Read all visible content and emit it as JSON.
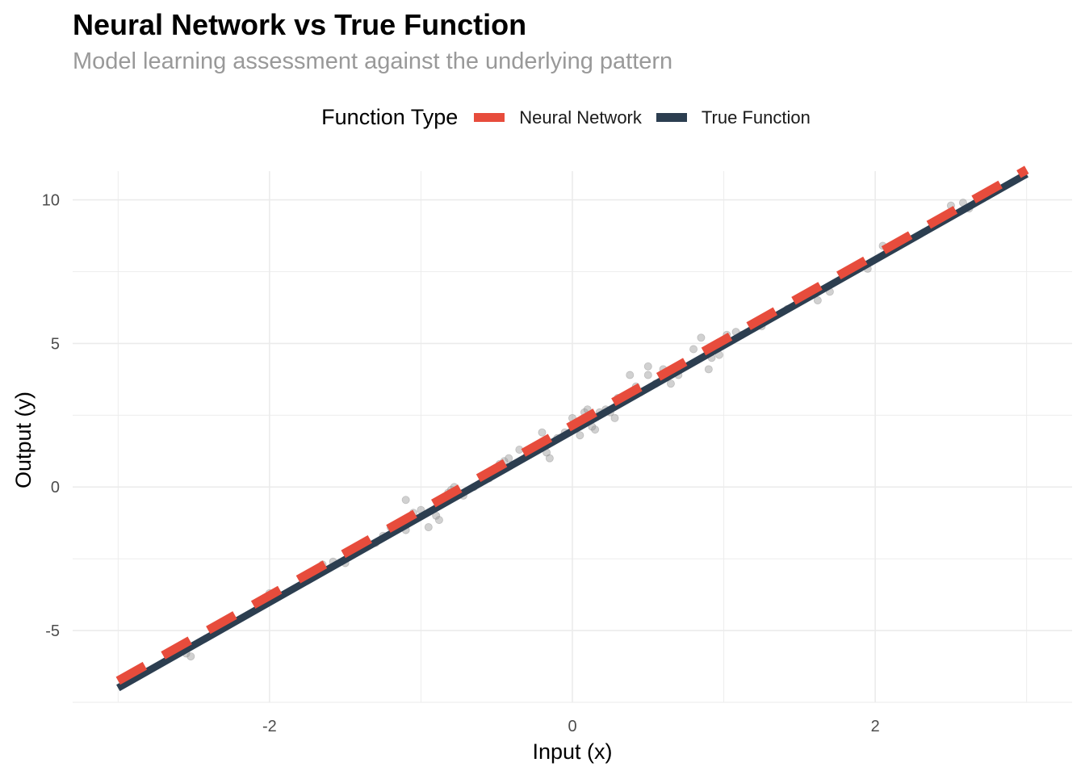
{
  "chart_data": {
    "type": "line",
    "title": "Neural Network vs True Function",
    "subtitle": "Model learning assessment against the underlying pattern",
    "xlabel": "Input (x)",
    "ylabel": "Output (y)",
    "xlim": [
      -3.3,
      3.3
    ],
    "ylim": [
      -7.5,
      11.0
    ],
    "x_ticks": [
      -2,
      0,
      2
    ],
    "x_tick_labels": [
      "-2",
      "0",
      "2"
    ],
    "y_ticks": [
      -5,
      0,
      5,
      10
    ],
    "y_tick_labels": [
      "-5",
      "0",
      "5",
      "10"
    ],
    "grid": true,
    "legend": {
      "title": "Function Type",
      "position": "top"
    },
    "series": [
      {
        "name": "Neural Network",
        "color": "#E74C3C",
        "style": "dashed",
        "x": [
          -3,
          3
        ],
        "y": [
          -6.75,
          11.05
        ]
      },
      {
        "name": "True Function",
        "color": "#2C3E50",
        "style": "solid",
        "x": [
          -3,
          3
        ],
        "y": [
          -7.0,
          10.9
        ]
      }
    ],
    "points": {
      "color": "#999999",
      "x": [
        -2.55,
        -2.6,
        -2.52,
        -2.0,
        -1.65,
        -1.58,
        -1.5,
        -1.3,
        -1.25,
        -1.2,
        -1.15,
        -1.1,
        -1.1,
        -1.05,
        -1.0,
        -0.95,
        -0.9,
        -0.88,
        -0.82,
        -0.8,
        -0.78,
        -0.72,
        -0.65,
        -0.55,
        -0.5,
        -0.48,
        -0.45,
        -0.42,
        -0.35,
        -0.3,
        -0.25,
        -0.2,
        -0.17,
        -0.15,
        -0.1,
        -0.05,
        0.0,
        0.05,
        0.08,
        0.1,
        0.12,
        0.13,
        0.15,
        0.18,
        0.22,
        0.25,
        0.28,
        0.3,
        0.35,
        0.38,
        0.42,
        0.45,
        0.5,
        0.5,
        0.55,
        0.6,
        0.65,
        0.68,
        0.7,
        0.8,
        0.85,
        0.9,
        0.92,
        0.97,
        1.02,
        1.08,
        1.12,
        1.25,
        1.3,
        1.42,
        1.5,
        1.62,
        1.7,
        1.85,
        1.95,
        2.05,
        2.5,
        2.58,
        2.62,
        2.68
      ],
      "y": [
        -5.8,
        -5.75,
        -5.9,
        -3.7,
        -2.7,
        -2.6,
        -2.65,
        -1.95,
        -1.7,
        -1.4,
        -1.3,
        -0.45,
        -1.5,
        -0.9,
        -0.8,
        -1.4,
        -1.0,
        -1.15,
        -0.2,
        -0.1,
        0.0,
        -0.3,
        0.0,
        0.3,
        0.5,
        0.8,
        0.9,
        1.0,
        1.3,
        1.1,
        1.3,
        1.9,
        1.2,
        1.0,
        1.7,
        1.9,
        2.4,
        1.8,
        2.6,
        2.7,
        2.5,
        2.1,
        2.0,
        2.6,
        2.7,
        2.6,
        2.4,
        3.1,
        3.2,
        3.9,
        3.5,
        3.3,
        3.9,
        4.2,
        3.6,
        4.1,
        3.6,
        4.0,
        3.9,
        4.8,
        5.2,
        4.1,
        4.5,
        4.6,
        5.3,
        5.4,
        5.3,
        5.6,
        6.0,
        6.2,
        6.6,
        6.5,
        6.8,
        7.6,
        7.6,
        8.4,
        9.8,
        9.9,
        9.7,
        10.1
      ]
    }
  }
}
